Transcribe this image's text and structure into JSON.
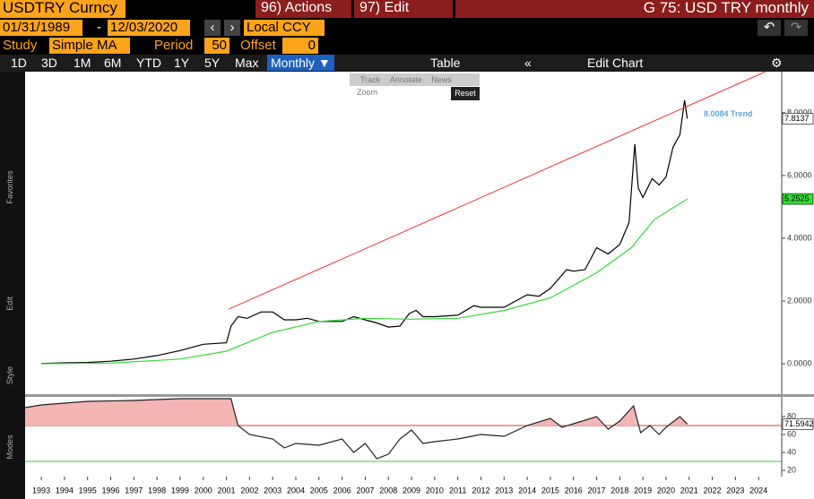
{
  "toolbar": {
    "ticker": "USDTRY Curncy",
    "actions": "96) Actions",
    "edit": "97) Edit",
    "window_title": "G 75: USD TRY monthly",
    "start_date": "01/31/1989",
    "dash": "-",
    "end_date": "12/03/2020",
    "currency": "Local CCY",
    "study_label": "Study",
    "study": "Simple MA",
    "period_label": "Period",
    "period": 50,
    "offset_label": "Offset",
    "offset": 0
  },
  "periods": [
    "1D",
    "3D",
    "1M",
    "6M",
    "YTD",
    "1Y",
    "5Y",
    "Max",
    "Monthly ▼"
  ],
  "table": "Table",
  "edit_chart": "Edit Chart",
  "tools": {
    "track": "Track",
    "annotate": "Annotate",
    "news": "News",
    "zoom": "Zoom",
    "reset": "Reset"
  },
  "side_labels": [
    "Favorites",
    "Edit",
    "Style",
    "Modes"
  ],
  "chart_data": [
    {
      "type": "line",
      "xlim": [
        1992.3,
        2025.0
      ],
      "ylim": [
        -0.97,
        9.31
      ],
      "yticks": [
        {
          "value": 0,
          "label": "0.0000"
        },
        {
          "value": 2,
          "label": "2.0000"
        },
        {
          "value": 4,
          "label": "4.0000"
        },
        {
          "value": 6,
          "label": "6.0000"
        },
        {
          "value": 8,
          "label": "8.0000"
        }
      ],
      "series": [
        {
          "color": "#000000",
          "x": [
            1993.0,
            1994.0,
            1995.0,
            1996.0,
            1997.0,
            1998.0,
            1999.0,
            2000.0,
            2001.0,
            2001.2,
            2001.5,
            2001.9,
            2002.5,
            2003.0,
            2003.5,
            2004.0,
            2004.5,
            2005.0,
            2006.0,
            2006.5,
            2007.0,
            2007.5,
            2008.0,
            2008.5,
            2008.9,
            2009.2,
            2009.5,
            2010.0,
            2011.0,
            2011.7,
            2012.0,
            2013.0,
            2013.5,
            2014.0,
            2014.5,
            2015.0,
            2015.7,
            2016.0,
            2016.5,
            2017.0,
            2017.5,
            2018.0,
            2018.4,
            2018.65,
            2018.8,
            2019.0,
            2019.4,
            2019.7,
            2020.0,
            2020.3,
            2020.6,
            2020.8,
            2020.92
          ],
          "values": [
            0.01,
            0.03,
            0.04,
            0.08,
            0.15,
            0.26,
            0.42,
            0.62,
            0.67,
            1.2,
            1.5,
            1.45,
            1.65,
            1.65,
            1.4,
            1.4,
            1.45,
            1.35,
            1.35,
            1.5,
            1.4,
            1.3,
            1.17,
            1.2,
            1.6,
            1.7,
            1.5,
            1.5,
            1.55,
            1.85,
            1.8,
            1.8,
            2.0,
            2.2,
            2.15,
            2.4,
            3.0,
            2.95,
            3.0,
            3.7,
            3.5,
            3.8,
            4.5,
            7.0,
            5.6,
            5.3,
            5.9,
            5.7,
            5.95,
            6.9,
            7.3,
            8.4,
            7.8137
          ]
        },
        {
          "color": "#33dd33",
          "x": [
            1993.0,
            1996.0,
            1999.0,
            2001.0,
            2003.0,
            2005.0,
            2007.0,
            2009.0,
            2011.0,
            2013.0,
            2015.0,
            2017.0,
            2018.5,
            2019.5,
            2020.92
          ],
          "values": [
            0,
            0.02,
            0.15,
            0.4,
            1.0,
            1.35,
            1.45,
            1.42,
            1.45,
            1.7,
            2.1,
            2.9,
            3.7,
            4.6,
            5.2525
          ]
        }
      ],
      "trend": {
        "x": [
          2001.1,
          2024.3
        ],
        "values": [
          1.74,
          9.31
        ],
        "color": "#ee3333",
        "label": "Trend",
        "value": 8.0084
      }
    },
    {
      "type": "line",
      "xlim": [
        1992.3,
        2025.0
      ],
      "ylim": [
        13,
        102
      ],
      "yticks": [
        20,
        40,
        60,
        80
      ],
      "xticks": [
        1993,
        1994,
        1995,
        1996,
        1997,
        1998,
        1999,
        2000,
        2001,
        2002,
        2003,
        2004,
        2005,
        2006,
        2007,
        2008,
        2009,
        2010,
        2011,
        2012,
        2013,
        2014,
        2015,
        2016,
        2017,
        2018,
        2019,
        2020,
        2021,
        2022,
        2023,
        2024
      ],
      "hlines": [
        {
          "value": 70,
          "color": "#e03a3a"
        },
        {
          "value": 30,
          "color": "#33cc33"
        }
      ],
      "fill_color": "#f4b5b5",
      "series": [
        {
          "color": "#222222",
          "x": [
            1992.3,
            1993.0,
            1995.0,
            1997.0,
            1999.0,
            2000.9,
            2001.2,
            2001.5,
            2002.0,
            2003.0,
            2003.5,
            2004.0,
            2005.0,
            2006.0,
            2006.5,
            2007.0,
            2007.5,
            2008.0,
            2008.5,
            2009.0,
            2009.5,
            2010.0,
            2011.0,
            2012.0,
            2013.0,
            2014.0,
            2015.0,
            2015.5,
            2016.0,
            2017.0,
            2017.5,
            2018.0,
            2018.6,
            2018.9,
            2019.3,
            2019.7,
            2020.0,
            2020.6,
            2020.92
          ],
          "values": [
            90,
            93,
            97,
            98,
            100,
            100,
            100,
            70,
            60,
            55,
            45,
            50,
            48,
            55,
            40,
            50,
            33,
            38,
            55,
            65,
            50,
            52,
            55,
            60,
            58,
            70,
            78,
            68,
            72,
            80,
            66,
            75,
            92,
            62,
            70,
            60,
            68,
            80,
            71.5942
          ]
        }
      ]
    }
  ]
}
